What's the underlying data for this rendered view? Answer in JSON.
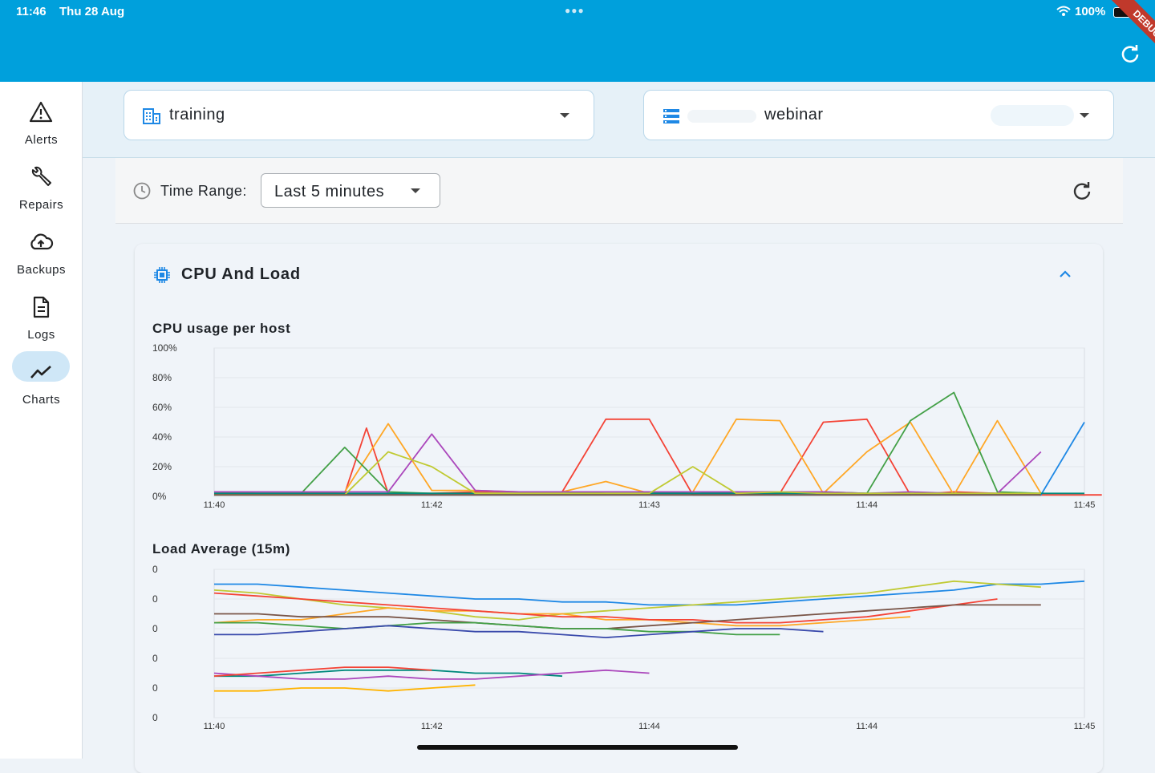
{
  "status_bar": {
    "time": "11:46",
    "date": "Thu 28 Aug",
    "battery": "100%",
    "debug_label": "DEBUG"
  },
  "sidebar": {
    "items": [
      {
        "label": "Alerts",
        "icon": "alert-triangle-icon"
      },
      {
        "label": "Repairs",
        "icon": "wrench-icon"
      },
      {
        "label": "Backups",
        "icon": "cloud-upload-icon"
      },
      {
        "label": "Logs",
        "icon": "document-icon"
      },
      {
        "label": "Charts",
        "icon": "line-chart-icon",
        "active": true
      }
    ]
  },
  "header": {
    "org_select": {
      "value": "training",
      "icon": "building-icon"
    },
    "cluster_select": {
      "value": "webinar",
      "icon": "server-list-icon"
    }
  },
  "filter": {
    "label": "Time Range:",
    "value": "Last 5 minutes"
  },
  "section": {
    "title": "CPU And Load"
  },
  "colors": {
    "accent": "#00a0dc",
    "active_nav": "#cfe7f7"
  },
  "chart_data": [
    {
      "type": "line",
      "title": "CPU usage per host",
      "ylabel": "",
      "xlabel": "",
      "ylim": [
        0,
        100
      ],
      "y_ticks": [
        "100%",
        "80%",
        "60%",
        "40%",
        "20%",
        "0%"
      ],
      "x_tick_labels": [
        "11:40",
        "11:42",
        "11:43",
        "11:44",
        "11:45"
      ],
      "x_range": [
        0,
        20
      ],
      "series": [
        {
          "name": "host-red",
          "color": "#f44336",
          "x": [
            0,
            1,
            2,
            3,
            3.5,
            4,
            5,
            6,
            7,
            8,
            9,
            10,
            11,
            12,
            13,
            14,
            15,
            16,
            17,
            18,
            19,
            20,
            20.4
          ],
          "values": [
            2,
            3,
            3,
            2,
            46,
            2,
            2,
            3,
            3,
            3,
            52,
            52,
            1,
            1,
            2,
            50,
            52,
            1,
            3,
            2,
            1,
            1,
            1
          ]
        },
        {
          "name": "host-orange",
          "color": "#ffa726",
          "x": [
            0,
            2,
            2.5,
            3,
            4,
            5,
            6,
            7,
            8,
            9,
            10,
            11,
            12,
            13,
            14,
            15,
            16,
            17,
            18,
            19
          ],
          "values": [
            3,
            3,
            3,
            3,
            49,
            4,
            4,
            3,
            3,
            10,
            2,
            3,
            52,
            51,
            2,
            30,
            50,
            1,
            51,
            2
          ]
        },
        {
          "name": "host-green",
          "color": "#43a047",
          "x": [
            0,
            1,
            2,
            3,
            4,
            5,
            6,
            7,
            8,
            9,
            10,
            11,
            12,
            13,
            14,
            15,
            16,
            17,
            18,
            19
          ],
          "values": [
            2,
            2,
            2,
            33,
            3,
            2,
            2,
            2,
            2,
            3,
            3,
            2,
            3,
            3,
            3,
            2,
            51,
            70,
            3,
            2
          ]
        },
        {
          "name": "host-purple",
          "color": "#ab47bc",
          "x": [
            0,
            2,
            3,
            4,
            5,
            6,
            7,
            8,
            9,
            10,
            11,
            12,
            13,
            14,
            15,
            16,
            17,
            18,
            19
          ],
          "values": [
            3,
            3,
            3,
            3,
            42,
            4,
            3,
            3,
            3,
            3,
            3,
            3,
            3,
            3,
            2,
            3,
            2,
            2,
            30
          ]
        },
        {
          "name": "host-blue",
          "color": "#1e88e5",
          "x": [
            0,
            1,
            2,
            3,
            4,
            5,
            6,
            7,
            8,
            9,
            10,
            11,
            12,
            13,
            14,
            15,
            16,
            17,
            18,
            19,
            20
          ],
          "values": [
            1,
            1,
            1,
            1,
            1,
            1,
            1,
            1,
            1,
            1,
            1,
            1,
            1,
            1,
            1,
            1,
            1,
            1,
            1,
            1,
            50
          ]
        },
        {
          "name": "host-teal",
          "color": "#00897b",
          "x": [
            0,
            1,
            2,
            3,
            4,
            5,
            6,
            7,
            8,
            9,
            10,
            11,
            12,
            13,
            14,
            15,
            16,
            17,
            18,
            19,
            20
          ],
          "values": [
            2,
            2,
            2,
            2,
            2,
            2,
            2,
            2,
            2,
            2,
            2,
            2,
            2,
            2,
            2,
            2,
            2,
            2,
            2,
            2,
            2
          ]
        },
        {
          "name": "host-lime",
          "color": "#c0ca33",
          "x": [
            0,
            2,
            3,
            4,
            5,
            6,
            7,
            8,
            9,
            10,
            11,
            12,
            13,
            14,
            15,
            16,
            17,
            18,
            19
          ],
          "values": [
            1,
            1,
            1,
            30,
            20,
            2,
            2,
            2,
            2,
            2,
            20,
            2,
            3,
            2,
            2,
            2,
            2,
            2,
            2
          ]
        },
        {
          "name": "host-brown",
          "color": "#795548",
          "x": [
            0,
            2,
            3,
            4,
            5,
            6,
            7,
            8,
            9,
            10,
            11,
            12,
            13,
            14,
            15,
            16,
            17,
            18,
            19
          ],
          "values": [
            1,
            1,
            1,
            1,
            1,
            1,
            1,
            1,
            1,
            1,
            1,
            1,
            1,
            1,
            1,
            1,
            1,
            1,
            1
          ]
        }
      ]
    },
    {
      "type": "line",
      "title": "Load Average (15m)",
      "ylabel": "",
      "xlabel": "",
      "ylim": [
        0,
        5
      ],
      "y_ticks": [
        "0",
        "0",
        "0",
        "0",
        "0",
        "0"
      ],
      "x_tick_labels": [
        "11:40",
        "11:42",
        "11:44",
        "11:44",
        "11:45"
      ],
      "x_range": [
        0,
        20
      ],
      "series": [
        {
          "name": "load-blue",
          "color": "#1e88e5",
          "x": [
            0,
            1,
            2,
            3,
            4,
            5,
            6,
            7,
            8,
            9,
            10,
            11,
            12,
            13,
            14,
            15,
            16,
            17,
            18,
            19,
            20
          ],
          "values": [
            4.5,
            4.5,
            4.4,
            4.3,
            4.2,
            4.1,
            4.0,
            4.0,
            3.9,
            3.9,
            3.8,
            3.8,
            3.8,
            3.9,
            4.0,
            4.1,
            4.2,
            4.3,
            4.5,
            4.5,
            4.6
          ]
        },
        {
          "name": "load-lime",
          "color": "#c0ca33",
          "x": [
            0,
            1,
            2,
            3,
            4,
            5,
            6,
            7,
            8,
            9,
            10,
            11,
            12,
            13,
            14,
            15,
            16,
            17,
            18,
            19
          ],
          "values": [
            4.3,
            4.2,
            4.0,
            3.8,
            3.7,
            3.6,
            3.4,
            3.3,
            3.5,
            3.6,
            3.7,
            3.8,
            3.9,
            4.0,
            4.1,
            4.2,
            4.4,
            4.6,
            4.5,
            4.4
          ]
        },
        {
          "name": "load-orange",
          "color": "#ffa726",
          "x": [
            0,
            1,
            2,
            3,
            4,
            5,
            6,
            7,
            8,
            9,
            10,
            11,
            12,
            13,
            14,
            15,
            16
          ],
          "values": [
            3.2,
            3.3,
            3.3,
            3.5,
            3.7,
            3.6,
            3.6,
            3.5,
            3.5,
            3.3,
            3.3,
            3.2,
            3.1,
            3.1,
            3.2,
            3.3,
            3.4
          ]
        },
        {
          "name": "load-red",
          "color": "#f44336",
          "x": [
            0,
            1,
            2,
            3,
            4,
            5,
            6,
            7,
            8,
            9,
            10,
            11,
            12,
            13,
            14,
            15,
            16,
            17,
            18
          ],
          "values": [
            4.2,
            4.1,
            4.0,
            3.9,
            3.8,
            3.7,
            3.6,
            3.5,
            3.4,
            3.4,
            3.3,
            3.3,
            3.2,
            3.2,
            3.3,
            3.4,
            3.6,
            3.8,
            4.0
          ]
        },
        {
          "name": "load-brown",
          "color": "#795548",
          "x": [
            0,
            1,
            2,
            3,
            4,
            5,
            6,
            7,
            8,
            9,
            10,
            11,
            12,
            13,
            14,
            15,
            16,
            17,
            18,
            19
          ],
          "values": [
            3.5,
            3.5,
            3.4,
            3.4,
            3.4,
            3.3,
            3.2,
            3.1,
            3.0,
            3.0,
            3.1,
            3.2,
            3.3,
            3.4,
            3.5,
            3.6,
            3.7,
            3.8,
            3.8,
            3.8
          ]
        },
        {
          "name": "load-green",
          "color": "#43a047",
          "x": [
            0,
            1,
            2,
            3,
            4,
            5,
            6,
            7,
            8,
            9,
            10,
            11,
            12,
            13
          ],
          "values": [
            3.2,
            3.2,
            3.1,
            3.0,
            3.1,
            3.2,
            3.2,
            3.1,
            3.0,
            3.0,
            2.9,
            2.9,
            2.8,
            2.8
          ]
        },
        {
          "name": "load-navy",
          "color": "#3949ab",
          "x": [
            0,
            1,
            2,
            3,
            4,
            5,
            6,
            7,
            8,
            9,
            10,
            11,
            12,
            13,
            14
          ],
          "values": [
            2.8,
            2.8,
            2.9,
            3.0,
            3.1,
            3.0,
            2.9,
            2.9,
            2.8,
            2.7,
            2.8,
            2.9,
            3.0,
            3.0,
            2.9
          ]
        },
        {
          "name": "load-teal-low",
          "color": "#00897b",
          "x": [
            0,
            1,
            2,
            3,
            4,
            5,
            6,
            7,
            8
          ],
          "values": [
            1.4,
            1.4,
            1.5,
            1.6,
            1.6,
            1.6,
            1.5,
            1.5,
            1.4
          ]
        },
        {
          "name": "load-purple-low",
          "color": "#ab47bc",
          "x": [
            0,
            1,
            2,
            3,
            4,
            5,
            6,
            7,
            8,
            9,
            10
          ],
          "values": [
            1.5,
            1.4,
            1.3,
            1.3,
            1.4,
            1.3,
            1.3,
            1.4,
            1.5,
            1.6,
            1.5
          ]
        },
        {
          "name": "load-red-low",
          "color": "#f44336",
          "x": [
            0,
            1,
            2,
            3,
            4,
            5
          ],
          "values": [
            1.4,
            1.5,
            1.6,
            1.7,
            1.7,
            1.6
          ]
        },
        {
          "name": "load-yellow-low",
          "color": "#ffb300",
          "x": [
            0,
            1,
            2,
            3,
            4,
            5,
            6
          ],
          "values": [
            0.9,
            0.9,
            1.0,
            1.0,
            0.9,
            1.0,
            1.1
          ]
        }
      ]
    }
  ]
}
